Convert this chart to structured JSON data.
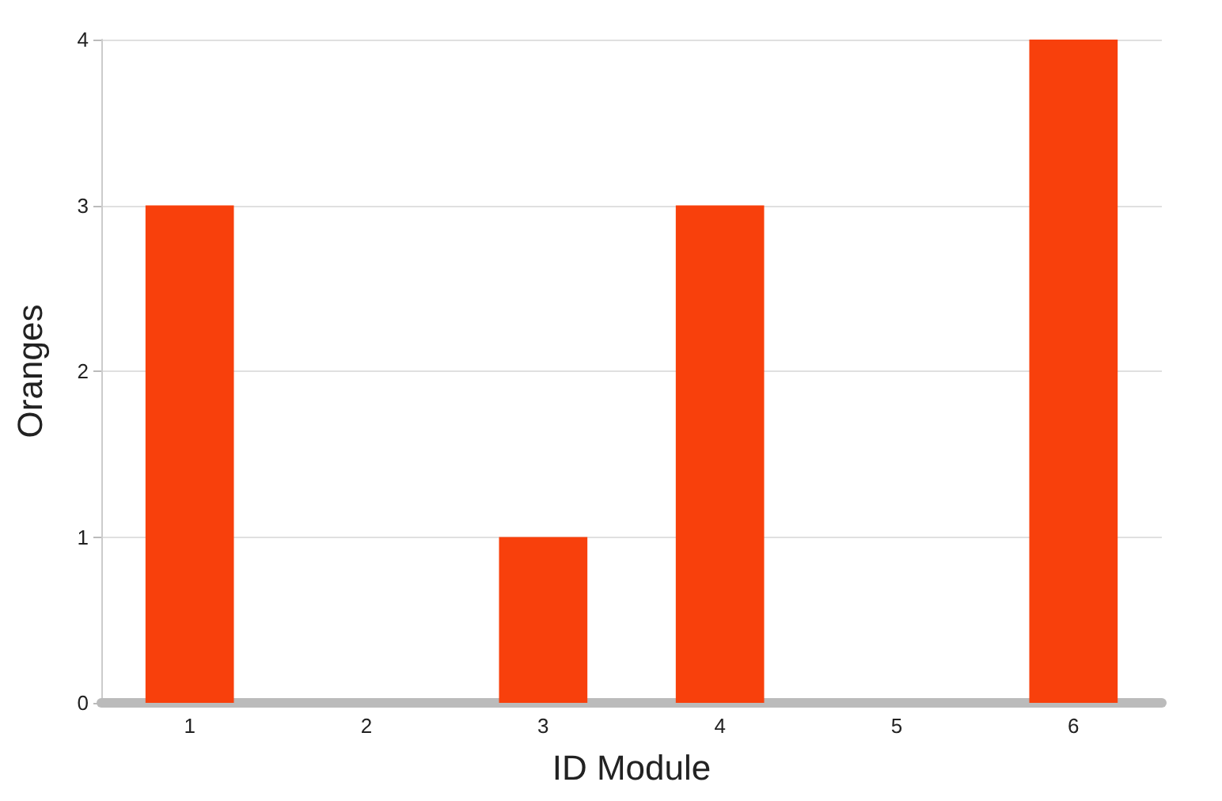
{
  "chart_data": {
    "type": "bar",
    "xlabel": "ID Module",
    "ylabel": "Oranges",
    "categories": [
      "1",
      "2",
      "3",
      "4",
      "5",
      "6"
    ],
    "values": [
      3,
      0,
      1,
      3,
      0,
      4
    ],
    "color": "#f8400c",
    "ylim": [
      0,
      4
    ],
    "yticks": [
      0,
      1,
      2,
      3,
      4
    ],
    "grid": "y"
  }
}
